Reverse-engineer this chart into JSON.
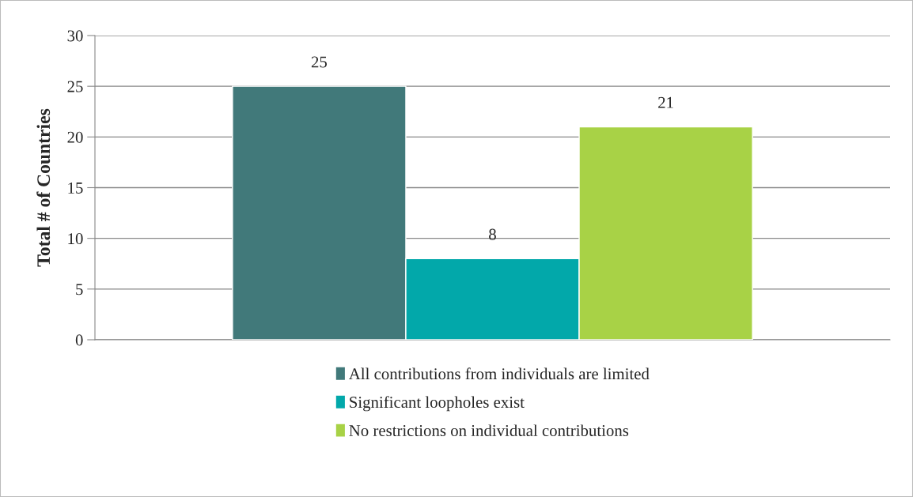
{
  "chart_data": {
    "type": "bar",
    "ylabel": "Total # of Countries",
    "categories": [
      null
    ],
    "series": [
      {
        "name": "All contributions from individuals are limited",
        "color": "#41797a",
        "values": [
          25
        ]
      },
      {
        "name": "Significant loopholes exist",
        "color": "#02a8aa",
        "values": [
          8
        ]
      },
      {
        "name": "No restrictions on individual contributions",
        "color": "#a8d246",
        "values": [
          21
        ]
      }
    ],
    "ylim": [
      0,
      30
    ],
    "yticks": [
      0,
      5,
      10,
      15,
      20,
      25,
      30
    ],
    "grid": "y",
    "legend": "bottom",
    "data_labels": true
  }
}
